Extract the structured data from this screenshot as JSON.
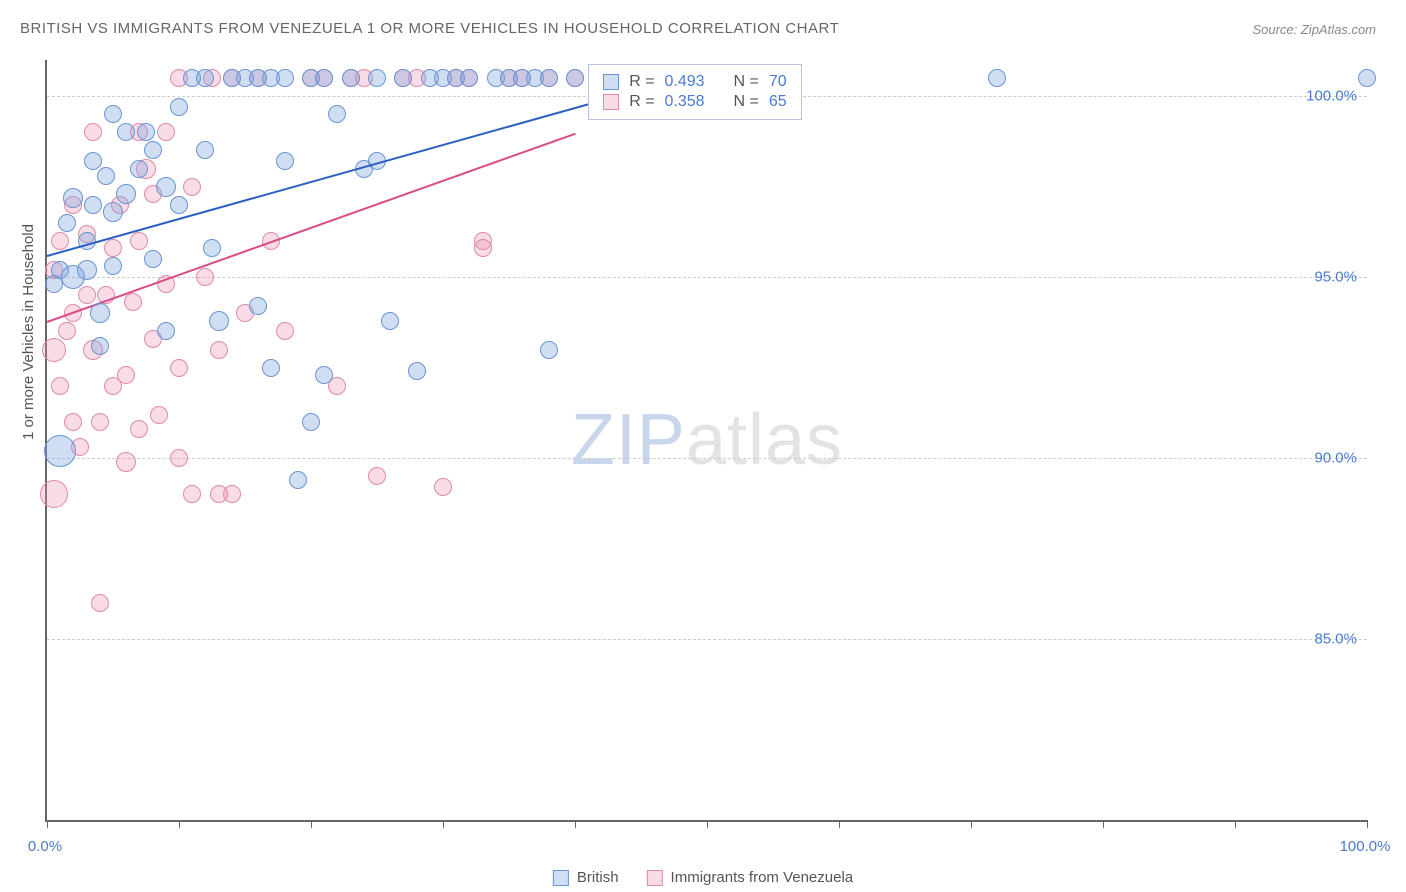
{
  "title": "BRITISH VS IMMIGRANTS FROM VENEZUELA 1 OR MORE VEHICLES IN HOUSEHOLD CORRELATION CHART",
  "source": "Source: ZipAtlas.com",
  "y_axis_label": "1 or more Vehicles in Household",
  "watermark": {
    "a": "ZIP",
    "b": "atlas"
  },
  "chart": {
    "type": "scatter",
    "background_color": "#ffffff",
    "grid_color": "#cccccc",
    "axis_color": "#666666",
    "tick_label_color": "#4a7bd0",
    "tick_fontsize": 15,
    "xlim": [
      0,
      100
    ],
    "ylim": [
      80,
      101
    ],
    "y_ticks": [
      {
        "v": 100,
        "label": "100.0%"
      },
      {
        "v": 95,
        "label": "95.0%"
      },
      {
        "v": 90,
        "label": "90.0%"
      },
      {
        "v": 85,
        "label": "85.0%"
      }
    ],
    "x_tick_positions": [
      0,
      10,
      20,
      30,
      40,
      50,
      60,
      70,
      80,
      90,
      100
    ],
    "x_tick_labels": [
      {
        "v": 0,
        "label": "0.0%"
      },
      {
        "v": 100,
        "label": "100.0%"
      }
    ],
    "series": {
      "british": {
        "label": "British",
        "fill": "rgba(120,160,220,0.35)",
        "stroke": "#6a94d4",
        "trend_color": "#2b5fc1",
        "trend": {
          "x1": 0,
          "y1": 95.6,
          "x2": 45,
          "y2": 100.2
        },
        "stats": {
          "R": "0.493",
          "N": "70"
        },
        "points": [
          {
            "x": 0.5,
            "y": 94.8,
            "r": 9
          },
          {
            "x": 1,
            "y": 95.2,
            "r": 9
          },
          {
            "x": 1,
            "y": 90.2,
            "r": 16
          },
          {
            "x": 1.5,
            "y": 96.5,
            "r": 9
          },
          {
            "x": 2,
            "y": 95.0,
            "r": 12
          },
          {
            "x": 2,
            "y": 97.2,
            "r": 10
          },
          {
            "x": 3,
            "y": 96.0,
            "r": 9
          },
          {
            "x": 3,
            "y": 95.2,
            "r": 10
          },
          {
            "x": 3.5,
            "y": 97.0,
            "r": 9
          },
          {
            "x": 3.5,
            "y": 98.2,
            "r": 9
          },
          {
            "x": 4,
            "y": 94.0,
            "r": 10
          },
          {
            "x": 4,
            "y": 93.1,
            "r": 9
          },
          {
            "x": 4.5,
            "y": 97.8,
            "r": 9
          },
          {
            "x": 5,
            "y": 96.8,
            "r": 10
          },
          {
            "x": 5,
            "y": 95.3,
            "r": 9
          },
          {
            "x": 5,
            "y": 99.5,
            "r": 9
          },
          {
            "x": 6,
            "y": 97.3,
            "r": 10
          },
          {
            "x": 6,
            "y": 99.0,
            "r": 9
          },
          {
            "x": 7,
            "y": 98.0,
            "r": 9
          },
          {
            "x": 7.5,
            "y": 99.0,
            "r": 9
          },
          {
            "x": 8,
            "y": 98.5,
            "r": 9
          },
          {
            "x": 8,
            "y": 95.5,
            "r": 9
          },
          {
            "x": 9,
            "y": 97.5,
            "r": 10
          },
          {
            "x": 9,
            "y": 93.5,
            "r": 9
          },
          {
            "x": 10,
            "y": 99.7,
            "r": 9
          },
          {
            "x": 10,
            "y": 97.0,
            "r": 9
          },
          {
            "x": 11,
            "y": 100.5,
            "r": 9
          },
          {
            "x": 12,
            "y": 100.5,
            "r": 9
          },
          {
            "x": 12,
            "y": 98.5,
            "r": 9
          },
          {
            "x": 12.5,
            "y": 95.8,
            "r": 9
          },
          {
            "x": 13,
            "y": 93.8,
            "r": 10
          },
          {
            "x": 14,
            "y": 100.5,
            "r": 9
          },
          {
            "x": 15,
            "y": 100.5,
            "r": 9
          },
          {
            "x": 16,
            "y": 100.5,
            "r": 9
          },
          {
            "x": 16,
            "y": 94.2,
            "r": 9
          },
          {
            "x": 17,
            "y": 100.5,
            "r": 9
          },
          {
            "x": 17,
            "y": 92.5,
            "r": 9
          },
          {
            "x": 18,
            "y": 100.5,
            "r": 9
          },
          {
            "x": 18,
            "y": 98.2,
            "r": 9
          },
          {
            "x": 19,
            "y": 89.4,
            "r": 9
          },
          {
            "x": 20,
            "y": 100.5,
            "r": 9
          },
          {
            "x": 20,
            "y": 91.0,
            "r": 9
          },
          {
            "x": 21,
            "y": 100.5,
            "r": 9
          },
          {
            "x": 21,
            "y": 92.3,
            "r": 9
          },
          {
            "x": 22,
            "y": 99.5,
            "r": 9
          },
          {
            "x": 23,
            "y": 100.5,
            "r": 9
          },
          {
            "x": 24,
            "y": 98.0,
            "r": 9
          },
          {
            "x": 25,
            "y": 100.5,
            "r": 9
          },
          {
            "x": 25,
            "y": 98.2,
            "r": 9
          },
          {
            "x": 26,
            "y": 93.8,
            "r": 9
          },
          {
            "x": 27,
            "y": 100.5,
            "r": 9
          },
          {
            "x": 28,
            "y": 92.4,
            "r": 9
          },
          {
            "x": 29,
            "y": 100.5,
            "r": 9
          },
          {
            "x": 30,
            "y": 100.5,
            "r": 9
          },
          {
            "x": 31,
            "y": 100.5,
            "r": 9
          },
          {
            "x": 32,
            "y": 100.5,
            "r": 9
          },
          {
            "x": 34,
            "y": 100.5,
            "r": 9
          },
          {
            "x": 35,
            "y": 100.5,
            "r": 9
          },
          {
            "x": 36,
            "y": 100.5,
            "r": 9
          },
          {
            "x": 37,
            "y": 100.5,
            "r": 9
          },
          {
            "x": 38,
            "y": 100.5,
            "r": 9
          },
          {
            "x": 38,
            "y": 93.0,
            "r": 9
          },
          {
            "x": 40,
            "y": 100.5,
            "r": 9
          },
          {
            "x": 43,
            "y": 100.5,
            "r": 9
          },
          {
            "x": 45,
            "y": 100.5,
            "r": 9
          },
          {
            "x": 47,
            "y": 100.5,
            "r": 9
          },
          {
            "x": 48,
            "y": 100.5,
            "r": 9
          },
          {
            "x": 50,
            "y": 100.5,
            "r": 9
          },
          {
            "x": 72,
            "y": 100.5,
            "r": 9
          },
          {
            "x": 100,
            "y": 100.5,
            "r": 9
          }
        ]
      },
      "venezuela": {
        "label": "Immigrants from Venezuela",
        "fill": "rgba(235,140,170,0.3)",
        "stroke": "#e08aaa",
        "trend_color": "#d94c88",
        "trend": {
          "x1": 0,
          "y1": 93.8,
          "x2": 40,
          "y2": 99.0
        },
        "stats": {
          "R": "0.358",
          "N": "65"
        },
        "points": [
          {
            "x": 0.5,
            "y": 95.2,
            "r": 9
          },
          {
            "x": 0.5,
            "y": 93.0,
            "r": 12
          },
          {
            "x": 0.5,
            "y": 89.0,
            "r": 14
          },
          {
            "x": 1,
            "y": 96.0,
            "r": 9
          },
          {
            "x": 1,
            "y": 92.0,
            "r": 9
          },
          {
            "x": 1.5,
            "y": 93.5,
            "r": 9
          },
          {
            "x": 2,
            "y": 94.0,
            "r": 9
          },
          {
            "x": 2,
            "y": 97.0,
            "r": 9
          },
          {
            "x": 2,
            "y": 91.0,
            "r": 9
          },
          {
            "x": 2.5,
            "y": 90.3,
            "r": 9
          },
          {
            "x": 3,
            "y": 94.5,
            "r": 9
          },
          {
            "x": 3,
            "y": 96.2,
            "r": 9
          },
          {
            "x": 3.5,
            "y": 93.0,
            "r": 10
          },
          {
            "x": 3.5,
            "y": 99.0,
            "r": 9
          },
          {
            "x": 4,
            "y": 91.0,
            "r": 9
          },
          {
            "x": 4,
            "y": 86.0,
            "r": 9
          },
          {
            "x": 4.5,
            "y": 94.5,
            "r": 9
          },
          {
            "x": 5,
            "y": 92.0,
            "r": 9
          },
          {
            "x": 5,
            "y": 95.8,
            "r": 9
          },
          {
            "x": 5.5,
            "y": 97.0,
            "r": 9
          },
          {
            "x": 6,
            "y": 92.3,
            "r": 9
          },
          {
            "x": 6,
            "y": 89.9,
            "r": 10
          },
          {
            "x": 6.5,
            "y": 94.3,
            "r": 9
          },
          {
            "x": 7,
            "y": 90.8,
            "r": 9
          },
          {
            "x": 7,
            "y": 99.0,
            "r": 9
          },
          {
            "x": 7,
            "y": 96.0,
            "r": 9
          },
          {
            "x": 7.5,
            "y": 98.0,
            "r": 10
          },
          {
            "x": 8,
            "y": 97.3,
            "r": 9
          },
          {
            "x": 8,
            "y": 93.3,
            "r": 9
          },
          {
            "x": 8.5,
            "y": 91.2,
            "r": 9
          },
          {
            "x": 9,
            "y": 94.8,
            "r": 9
          },
          {
            "x": 9,
            "y": 99.0,
            "r": 9
          },
          {
            "x": 10,
            "y": 92.5,
            "r": 9
          },
          {
            "x": 10,
            "y": 90.0,
            "r": 9
          },
          {
            "x": 10,
            "y": 100.5,
            "r": 9
          },
          {
            "x": 11,
            "y": 97.5,
            "r": 9
          },
          {
            "x": 11,
            "y": 89.0,
            "r": 9
          },
          {
            "x": 12,
            "y": 95.0,
            "r": 9
          },
          {
            "x": 12.5,
            "y": 100.5,
            "r": 9
          },
          {
            "x": 13,
            "y": 93.0,
            "r": 9
          },
          {
            "x": 13,
            "y": 89.0,
            "r": 9
          },
          {
            "x": 14,
            "y": 89.0,
            "r": 9
          },
          {
            "x": 14,
            "y": 100.5,
            "r": 9
          },
          {
            "x": 15,
            "y": 94.0,
            "r": 9
          },
          {
            "x": 16,
            "y": 100.5,
            "r": 9
          },
          {
            "x": 17,
            "y": 96.0,
            "r": 9
          },
          {
            "x": 18,
            "y": 93.5,
            "r": 9
          },
          {
            "x": 20,
            "y": 100.5,
            "r": 9
          },
          {
            "x": 21,
            "y": 100.5,
            "r": 9
          },
          {
            "x": 22,
            "y": 92.0,
            "r": 9
          },
          {
            "x": 23,
            "y": 100.5,
            "r": 9
          },
          {
            "x": 24,
            "y": 100.5,
            "r": 9
          },
          {
            "x": 25,
            "y": 89.5,
            "r": 9
          },
          {
            "x": 27,
            "y": 100.5,
            "r": 9
          },
          {
            "x": 28,
            "y": 100.5,
            "r": 9
          },
          {
            "x": 30,
            "y": 89.2,
            "r": 9
          },
          {
            "x": 31,
            "y": 100.5,
            "r": 9
          },
          {
            "x": 32,
            "y": 100.5,
            "r": 9
          },
          {
            "x": 33,
            "y": 96.0,
            "r": 9
          },
          {
            "x": 33,
            "y": 95.8,
            "r": 9
          },
          {
            "x": 35,
            "y": 100.5,
            "r": 9
          },
          {
            "x": 36,
            "y": 100.5,
            "r": 9
          },
          {
            "x": 38,
            "y": 100.5,
            "r": 9
          },
          {
            "x": 40,
            "y": 100.5,
            "r": 9
          },
          {
            "x": 47,
            "y": 100.5,
            "r": 9
          }
        ]
      }
    }
  },
  "stats_box": {
    "R_label": "R =",
    "N_label": "N ="
  }
}
